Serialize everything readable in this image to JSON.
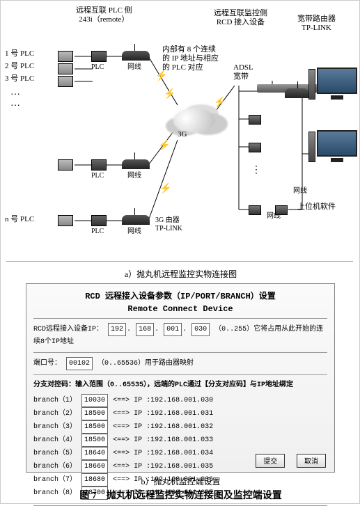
{
  "figure": {
    "caption_a": "a）抛丸机远程监控实物连接图",
    "caption_b": "b）抛丸机监控端设置",
    "main": "图 7　抛丸机远程监控实物连接图及监控端设置"
  },
  "diagram": {
    "header_left": {
      "line1": "远程互联 PLC 侧",
      "line2": "243i（remote）"
    },
    "header_right": {
      "line1": "远程互联监控侧",
      "line2": "RCD 接入设备"
    },
    "router_label": {
      "line1": "宽带路由器",
      "line2": "TP-LINK"
    },
    "note": {
      "l1": "内部有 8 个连续",
      "l2": "的 IP 地址与相应",
      "l3": "的 PLC 对应"
    },
    "adsl": {
      "l1": "ADSL",
      "l2": "宽带"
    },
    "threeg": "3G",
    "threeg_router": {
      "l1": "3G 由器",
      "l2": "TP-LINK"
    },
    "labels": {
      "plc1": "1 号 PLC",
      "plc2": "2 号 PLC",
      "plc3": "3 号 PLC",
      "plcn": "n 号 PLC",
      "dots1": "…",
      "dots2": "…",
      "plc_txt": "PLC",
      "wire": "网线",
      "host_sw": "上位机软件"
    }
  },
  "dialog": {
    "title1": "RCD 远程接入设备参数（IP/PORT/BRANCH）设置",
    "title2": "Remote Connect Device",
    "ip_row": {
      "label_pre": "RCD远程接入设备IP：",
      "o1": "192",
      "o2": "168",
      "o3": "001",
      "o4": "030",
      "hint": "（0..255）它将占用从此开始的连续8个IP地址"
    },
    "port_row": {
      "label": "端口号：",
      "val": "00102",
      "hint": "（0..65536）用于路由器映射"
    },
    "branch_header": "分支对控码：输入范围（0..65535），远端的PLC通过【分支对应码】与IP地址绑定",
    "branches": [
      {
        "n": "1",
        "code": "10030",
        "ip": "192.168.001.030"
      },
      {
        "n": "2",
        "code": "18500",
        "ip": "192.168.001.031"
      },
      {
        "n": "3",
        "code": "18500",
        "ip": "192.168.001.032"
      },
      {
        "n": "4",
        "code": "18500",
        "ip": "192.168.001.033"
      },
      {
        "n": "5",
        "code": "18640",
        "ip": "192.168.001.034"
      },
      {
        "n": "6",
        "code": "18660",
        "ip": "192.168.001.035"
      },
      {
        "n": "7",
        "code": "18680",
        "ip": "192.168.001.036"
      },
      {
        "n": "8",
        "code": "18700",
        "ip": "192.168.001.037"
      }
    ],
    "branch_fmt": {
      "pre": "branch（",
      "post": "）",
      "arrow": " <==> IP :"
    },
    "buttons": {
      "ok": "提交",
      "cancel": "取消"
    }
  }
}
